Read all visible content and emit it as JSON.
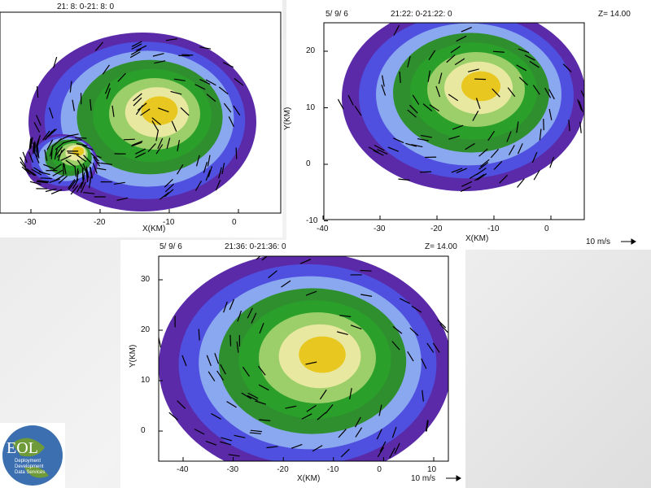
{
  "panels": [
    {
      "time": "21: 8: 0-21: 8: 0",
      "x_label": "X(KM)",
      "x_ticks": [
        "-30",
        "-20",
        "-10",
        "0"
      ]
    },
    {
      "date": "5/ 9/ 6",
      "time": "21:22: 0-21:22: 0",
      "level": "Z= 14.00",
      "x_label": "X(KM)",
      "y_label": "Y(KM)",
      "x_ticks": [
        "-40",
        "-30",
        "-20",
        "-10",
        "0"
      ],
      "y_ticks": [
        "20",
        "10",
        "0",
        "-10"
      ],
      "scale": "10 m/s"
    },
    {
      "date": "5/ 9/ 6",
      "time": "21:36: 0-21:36: 0",
      "level": "Z= 14.00",
      "x_label": "X(KM)",
      "y_label": "Y(KM)",
      "x_ticks": [
        "-40",
        "-30",
        "-20",
        "-10",
        "0",
        "10"
      ],
      "y_ticks": [
        "30",
        "20",
        "10",
        "0"
      ],
      "scale": "10 m/s"
    }
  ],
  "logo": {
    "title": "EOL",
    "lines": [
      "Deployment",
      "Development",
      "Data Services"
    ]
  }
}
